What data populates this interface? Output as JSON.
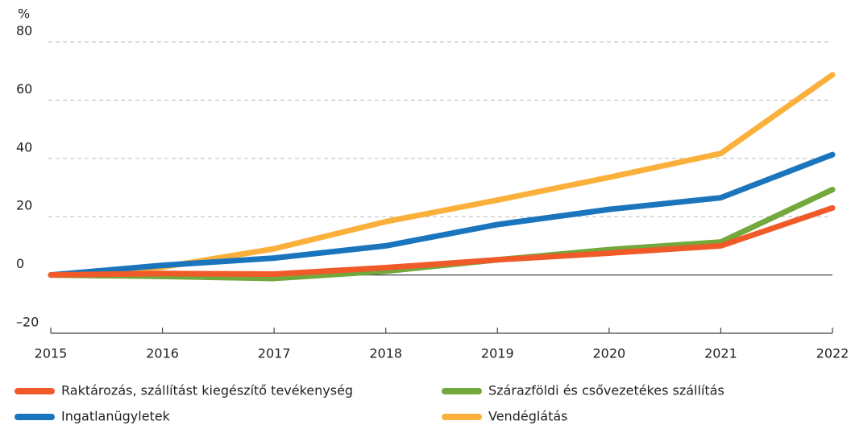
{
  "chart_data": {
    "type": "line",
    "y_label": "%",
    "x": [
      2015,
      2016,
      2017,
      2018,
      2019,
      2020,
      2021,
      2022
    ],
    "xlim": [
      2015,
      2022
    ],
    "xticks": [
      2015,
      2016,
      2017,
      2018,
      2019,
      2020,
      2021,
      2022
    ],
    "ylim": [
      -20,
      80
    ],
    "yticks": [
      {
        "value": -20,
        "label": "–20"
      },
      0,
      20,
      40,
      60,
      80
    ],
    "grid": true,
    "series": [
      {
        "name": "Raktározás, szállítást kiegészítő tevékenység",
        "color": "#f05a28",
        "values": [
          0,
          0.5,
          0.3,
          2.5,
          5.2,
          7.5,
          10,
          23
        ]
      },
      {
        "name": "Szárazföldi és csővezetékes szállítás",
        "color": "#72a83c",
        "values": [
          0,
          -0.5,
          -1.2,
          1.3,
          5.2,
          8.7,
          11.3,
          29.3
        ]
      },
      {
        "name": "Ingatlanügyletek",
        "color": "#1b75bc",
        "values": [
          0,
          3.3,
          5.8,
          10,
          17.3,
          22.5,
          26.5,
          41.3
        ]
      },
      {
        "name": "Vendéglátás",
        "color": "#fbb03b",
        "values": [
          0,
          2.7,
          9,
          18.3,
          25.7,
          33.5,
          41.7,
          68.7
        ]
      }
    ]
  }
}
